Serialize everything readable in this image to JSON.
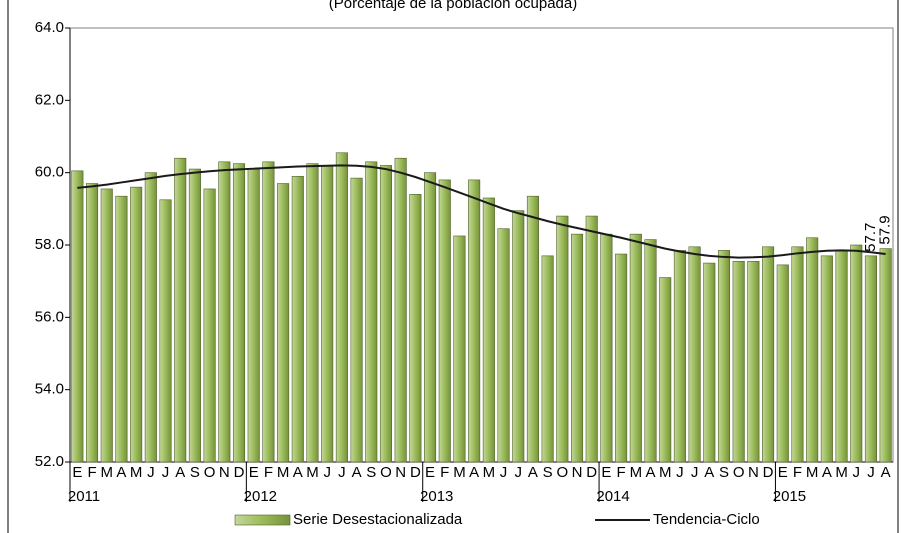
{
  "chart_data": {
    "type": "bar",
    "subtitle": "(Porcentaje de la población ocupada)",
    "categories": [
      "E",
      "F",
      "M",
      "A",
      "M",
      "J",
      "J",
      "A",
      "S",
      "O",
      "N",
      "D",
      "E",
      "F",
      "M",
      "A",
      "M",
      "J",
      "J",
      "A",
      "S",
      "O",
      "N",
      "D",
      "E",
      "F",
      "M",
      "A",
      "M",
      "J",
      "J",
      "A",
      "S",
      "O",
      "N",
      "D",
      "E",
      "F",
      "M",
      "A",
      "M",
      "J",
      "J",
      "A",
      "S",
      "O",
      "N",
      "D",
      "E",
      "F",
      "M",
      "A",
      "M",
      "J",
      "J",
      "A"
    ],
    "category_groups": [
      "2011",
      null,
      null,
      null,
      null,
      null,
      null,
      null,
      null,
      null,
      null,
      null,
      "2012",
      null,
      null,
      null,
      null,
      null,
      null,
      null,
      null,
      null,
      null,
      null,
      "2013",
      null,
      null,
      null,
      null,
      null,
      null,
      null,
      null,
      null,
      null,
      null,
      "2014",
      null,
      null,
      null,
      null,
      null,
      null,
      null,
      null,
      null,
      null,
      null,
      "2015",
      null,
      null,
      null,
      null,
      null,
      null,
      null
    ],
    "series": [
      {
        "name": "Serie Desestacionalizada",
        "kind": "bar",
        "color": "#9bbb59",
        "values": [
          60.05,
          59.7,
          59.55,
          59.35,
          59.6,
          60.0,
          59.25,
          60.4,
          60.1,
          59.55,
          60.3,
          60.25,
          60.1,
          60.3,
          59.7,
          59.9,
          60.25,
          60.2,
          60.55,
          59.85,
          60.3,
          60.2,
          60.4,
          59.4,
          60.0,
          59.8,
          58.25,
          59.8,
          59.3,
          58.45,
          58.95,
          59.35,
          57.7,
          58.8,
          58.3,
          58.8,
          58.3,
          57.75,
          58.3,
          58.15,
          57.1,
          57.85,
          57.95,
          57.5,
          57.85,
          57.55,
          57.55,
          57.95,
          57.45,
          57.95,
          58.2,
          57.7,
          57.85,
          58.0,
          57.7,
          57.9
        ],
        "value_labels": [
          null,
          null,
          null,
          null,
          null,
          null,
          null,
          null,
          null,
          null,
          null,
          null,
          null,
          null,
          null,
          null,
          null,
          null,
          null,
          null,
          null,
          null,
          null,
          null,
          null,
          null,
          null,
          null,
          null,
          null,
          null,
          null,
          null,
          null,
          null,
          null,
          null,
          null,
          null,
          null,
          null,
          null,
          null,
          null,
          null,
          null,
          null,
          null,
          null,
          null,
          null,
          null,
          null,
          null,
          "57.7",
          "57.9"
        ]
      },
      {
        "name": "Tendencia-Ciclo",
        "kind": "line",
        "color": "#1a1a1a",
        "values": [
          59.58,
          59.62,
          59.67,
          59.73,
          59.79,
          59.85,
          59.91,
          59.96,
          60.0,
          60.04,
          60.07,
          60.09,
          60.11,
          60.13,
          60.15,
          60.17,
          60.18,
          60.19,
          60.2,
          60.19,
          60.16,
          60.1,
          60.0,
          59.88,
          59.74,
          59.6,
          59.45,
          59.3,
          59.15,
          59.0,
          58.88,
          58.77,
          58.66,
          58.56,
          58.47,
          58.38,
          58.29,
          58.2,
          58.1,
          58.0,
          57.9,
          57.82,
          57.75,
          57.7,
          57.67,
          57.65,
          57.66,
          57.68,
          57.72,
          57.77,
          57.81,
          57.84,
          57.85,
          57.84,
          57.8,
          57.75
        ]
      }
    ],
    "ylim": [
      52,
      64
    ],
    "yticks": [
      {
        "value": 52,
        "label": "52.0"
      },
      {
        "value": 54,
        "label": "54.0"
      },
      {
        "value": 56,
        "label": "56.0"
      },
      {
        "value": 58,
        "label": "58.0"
      },
      {
        "value": 60,
        "label": "60.0"
      },
      {
        "value": 62,
        "label": "62.0"
      },
      {
        "value": 64,
        "label": "64.0"
      }
    ],
    "grid": false,
    "legend": "bottom"
  }
}
